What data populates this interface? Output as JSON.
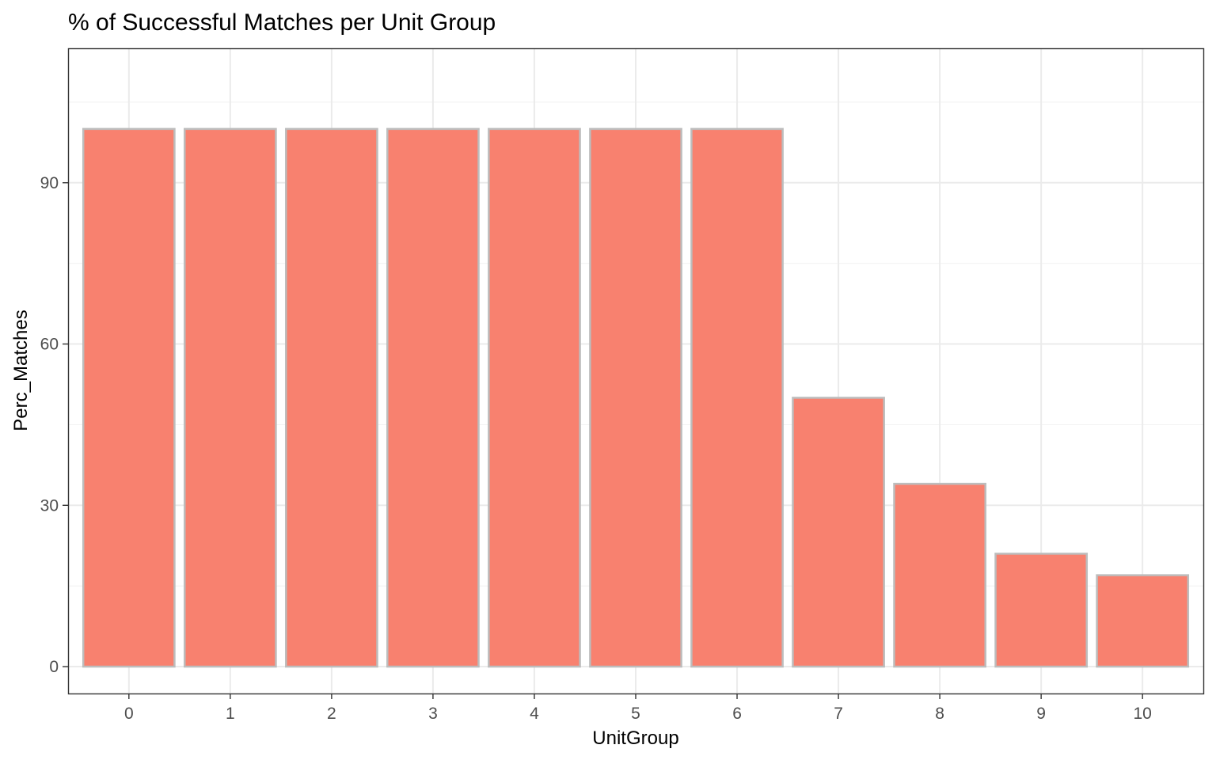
{
  "chart_data": {
    "type": "bar",
    "title": "% of Successful Matches per Unit Group",
    "xlabel": "UnitGroup",
    "ylabel": "Perc_Matches",
    "categories": [
      "0",
      "1",
      "2",
      "3",
      "4",
      "5",
      "6",
      "7",
      "8",
      "9",
      "10"
    ],
    "values": [
      100,
      100,
      100,
      100,
      100,
      100,
      100,
      50,
      34,
      21,
      17
    ],
    "yticks": [
      0,
      30,
      60,
      90
    ],
    "ylim": [
      -5,
      115
    ],
    "grid": true,
    "legend": "none",
    "colors": {
      "bar_fill": "#f8816f",
      "bar_outline": "#bdbdbd"
    }
  }
}
